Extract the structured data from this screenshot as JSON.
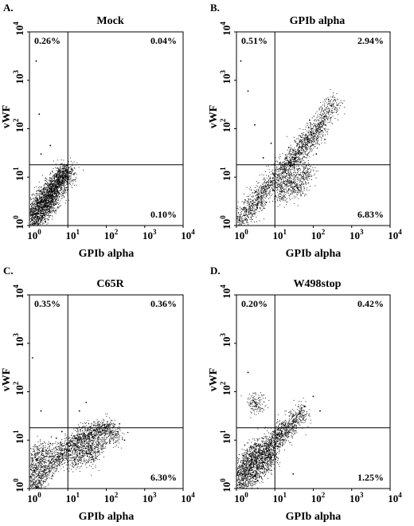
{
  "figure": {
    "panels": [
      {
        "letter": "A.",
        "title": "Mock",
        "xlabel": "GPIb alpha",
        "ylabel": "vWF",
        "quadrants": {
          "upper_left": "0.26%",
          "upper_right": "0.04%",
          "lower_right": "0.10%"
        }
      },
      {
        "letter": "B.",
        "title": "GPIb alpha",
        "xlabel": "GPIb alpha",
        "ylabel": "vWF",
        "quadrants": {
          "upper_left": "0.51%",
          "upper_right": "2.94%",
          "lower_right": "6.83%"
        }
      },
      {
        "letter": "C.",
        "title": "C65R",
        "xlabel": "GPIb alpha",
        "ylabel": "vWF",
        "quadrants": {
          "upper_left": "0.35%",
          "upper_right": "0.36%",
          "lower_right": "6.30%"
        }
      },
      {
        "letter": "D.",
        "title": "W498stop",
        "xlabel": "GPIb alpha",
        "ylabel": "vWF",
        "quadrants": {
          "upper_left": "0.20%",
          "upper_right": "0.42%",
          "lower_right": "1.25%"
        }
      }
    ]
  },
  "chart_data": [
    {
      "type": "scatter",
      "title": "Mock",
      "xlabel": "GPIb alpha",
      "ylabel": "vWF",
      "x_scale": "log",
      "y_scale": "log",
      "xlim": [
        1,
        10000
      ],
      "ylim": [
        1,
        10000
      ],
      "x_ticks": [
        {
          "base": "10",
          "exp": "0"
        },
        {
          "base": "10",
          "exp": "1"
        },
        {
          "base": "10",
          "exp": "2"
        },
        {
          "base": "10",
          "exp": "3"
        },
        {
          "base": "10",
          "exp": "4"
        }
      ],
      "y_ticks": [
        {
          "base": "10",
          "exp": "0"
        },
        {
          "base": "10",
          "exp": "1"
        },
        {
          "base": "10",
          "exp": "2"
        },
        {
          "base": "10",
          "exp": "3"
        },
        {
          "base": "10",
          "exp": "4"
        }
      ],
      "quadrant_gate": {
        "x": 10,
        "y": 18
      },
      "quadrant_percent": {
        "upper_left": 0.26,
        "upper_right": 0.04,
        "lower_right": 0.1
      },
      "points": [
        [
          1.2,
          1.3
        ],
        [
          1.5,
          1.8
        ],
        [
          2.0,
          2.4
        ],
        [
          2.6,
          3.2
        ],
        [
          3.5,
          4.3
        ],
        [
          4.5,
          5.6
        ],
        [
          5.8,
          7.5
        ],
        [
          7.5,
          9.5
        ],
        [
          8.5,
          11
        ],
        [
          9.5,
          14
        ],
        [
          1.4,
          1.1
        ],
        [
          2.2,
          1.6
        ],
        [
          3.0,
          2.5
        ],
        [
          4.0,
          3.5
        ],
        [
          1.1,
          2.0
        ],
        [
          1.7,
          3.0
        ],
        [
          2.4,
          4.2
        ],
        [
          3.3,
          5.8
        ],
        [
          4.8,
          8.0
        ],
        [
          6.5,
          10
        ],
        [
          2.0,
          30
        ],
        [
          3.5,
          45
        ],
        [
          1.8,
          200
        ],
        [
          1.5,
          2500
        ]
      ]
    },
    {
      "type": "scatter",
      "title": "GPIb alpha",
      "xlabel": "GPIb alpha",
      "ylabel": "vWF",
      "x_scale": "log",
      "y_scale": "log",
      "xlim": [
        1,
        10000
      ],
      "ylim": [
        1,
        10000
      ],
      "x_ticks": [
        {
          "base": "10",
          "exp": "0"
        },
        {
          "base": "10",
          "exp": "1"
        },
        {
          "base": "10",
          "exp": "2"
        },
        {
          "base": "10",
          "exp": "3"
        },
        {
          "base": "10",
          "exp": "4"
        }
      ],
      "y_ticks": [
        {
          "base": "10",
          "exp": "0"
        },
        {
          "base": "10",
          "exp": "1"
        },
        {
          "base": "10",
          "exp": "2"
        },
        {
          "base": "10",
          "exp": "3"
        },
        {
          "base": "10",
          "exp": "4"
        }
      ],
      "quadrant_gate": {
        "x": 10,
        "y": 18
      },
      "quadrant_percent": {
        "upper_left": 0.51,
        "upper_right": 2.94,
        "lower_right": 6.83
      },
      "points": [
        [
          1.2,
          1.3
        ],
        [
          1.8,
          2.0
        ],
        [
          2.6,
          2.8
        ],
        [
          3.8,
          3.8
        ],
        [
          5.5,
          5.5
        ],
        [
          8.0,
          8.0
        ],
        [
          12,
          11
        ],
        [
          18,
          15
        ],
        [
          25,
          20
        ],
        [
          35,
          28
        ],
        [
          50,
          40
        ],
        [
          70,
          60
        ],
        [
          100,
          80
        ],
        [
          140,
          110
        ],
        [
          200,
          180
        ],
        [
          300,
          300
        ],
        [
          15,
          5
        ],
        [
          25,
          8
        ],
        [
          40,
          6
        ],
        [
          60,
          12
        ],
        [
          20,
          25
        ],
        [
          30,
          35
        ],
        [
          45,
          55
        ],
        [
          3.0,
          1.8
        ],
        [
          6.0,
          3.0
        ],
        [
          10,
          4.0
        ],
        [
          5.0,
          25
        ],
        [
          8.0,
          50
        ],
        [
          3.0,
          120
        ],
        [
          120,
          30
        ],
        [
          200,
          60
        ],
        [
          1.3,
          2500
        ],
        [
          2.0,
          600
        ],
        [
          250,
          400
        ],
        [
          80,
          150
        ]
      ]
    },
    {
      "type": "scatter",
      "title": "C65R",
      "xlabel": "GPIb alpha",
      "ylabel": "vWF",
      "x_scale": "log",
      "y_scale": "log",
      "xlim": [
        1,
        10000
      ],
      "ylim": [
        1,
        10000
      ],
      "x_ticks": [
        {
          "base": "10",
          "exp": "0"
        },
        {
          "base": "10",
          "exp": "1"
        },
        {
          "base": "10",
          "exp": "2"
        },
        {
          "base": "10",
          "exp": "3"
        },
        {
          "base": "10",
          "exp": "4"
        }
      ],
      "y_ticks": [
        {
          "base": "10",
          "exp": "0"
        },
        {
          "base": "10",
          "exp": "1"
        },
        {
          "base": "10",
          "exp": "2"
        },
        {
          "base": "10",
          "exp": "3"
        },
        {
          "base": "10",
          "exp": "4"
        }
      ],
      "quadrant_gate": {
        "x": 10,
        "y": 18
      },
      "quadrant_percent": {
        "upper_left": 0.35,
        "upper_right": 0.36,
        "lower_right": 6.3
      },
      "points": [
        [
          1.2,
          1.2
        ],
        [
          1.8,
          1.7
        ],
        [
          2.6,
          2.4
        ],
        [
          3.8,
          3.4
        ],
        [
          5.5,
          4.6
        ],
        [
          8.0,
          6.2
        ],
        [
          12,
          8.0
        ],
        [
          18,
          10
        ],
        [
          28,
          12
        ],
        [
          40,
          14
        ],
        [
          60,
          16
        ],
        [
          100,
          18
        ],
        [
          150,
          13
        ],
        [
          15,
          4
        ],
        [
          25,
          6
        ],
        [
          40,
          5
        ],
        [
          60,
          8
        ],
        [
          1.1,
          2.5
        ],
        [
          1.5,
          4.0
        ],
        [
          2.2,
          6.0
        ],
        [
          3.5,
          8.5
        ],
        [
          5.0,
          11
        ],
        [
          7.0,
          15
        ],
        [
          2.0,
          40
        ],
        [
          1.2,
          500
        ],
        [
          20,
          40
        ],
        [
          30,
          60
        ],
        [
          200,
          15
        ],
        [
          300,
          10
        ],
        [
          1.5,
          1.1
        ]
      ]
    },
    {
      "type": "scatter",
      "title": "W498stop",
      "xlabel": "GPIb alpha",
      "ylabel": "vWF",
      "x_scale": "log",
      "y_scale": "log",
      "xlim": [
        1,
        10000
      ],
      "ylim": [
        1,
        10000
      ],
      "x_ticks": [
        {
          "base": "10",
          "exp": "0"
        },
        {
          "base": "10",
          "exp": "1"
        },
        {
          "base": "10",
          "exp": "2"
        },
        {
          "base": "10",
          "exp": "3"
        },
        {
          "base": "10",
          "exp": "4"
        }
      ],
      "y_ticks": [
        {
          "base": "10",
          "exp": "0"
        },
        {
          "base": "10",
          "exp": "1"
        },
        {
          "base": "10",
          "exp": "2"
        },
        {
          "base": "10",
          "exp": "3"
        },
        {
          "base": "10",
          "exp": "4"
        }
      ],
      "quadrant_gate": {
        "x": 10,
        "y": 18
      },
      "quadrant_percent": {
        "upper_left": 0.2,
        "upper_right": 0.42,
        "lower_right": 1.25
      },
      "points": [
        [
          1.2,
          1.2
        ],
        [
          1.7,
          1.8
        ],
        [
          2.4,
          2.6
        ],
        [
          3.3,
          3.6
        ],
        [
          4.5,
          5.0
        ],
        [
          6.0,
          6.8
        ],
        [
          8.0,
          8.8
        ],
        [
          11,
          11
        ],
        [
          15,
          14
        ],
        [
          20,
          18
        ],
        [
          30,
          25
        ],
        [
          45,
          35
        ],
        [
          1.1,
          2.2
        ],
        [
          1.6,
          3.2
        ],
        [
          2.3,
          4.6
        ],
        [
          3.2,
          6.4
        ],
        [
          3.0,
          1.8
        ],
        [
          5.0,
          3.0
        ],
        [
          8.0,
          4.5
        ],
        [
          3.0,
          60
        ],
        [
          2.0,
          250
        ],
        [
          60,
          50
        ],
        [
          100,
          80
        ],
        [
          150,
          40
        ],
        [
          30,
          2.0
        ]
      ]
    }
  ]
}
